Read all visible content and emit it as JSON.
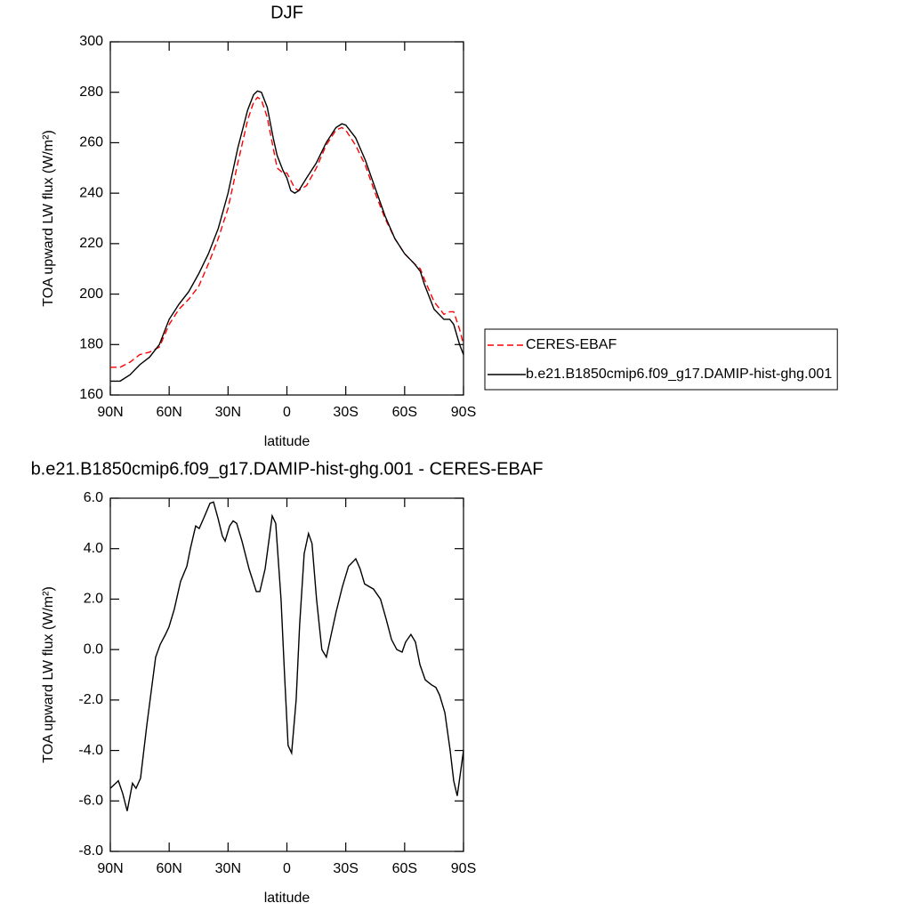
{
  "chart_data": [
    {
      "type": "line",
      "title": "DJF",
      "xlabel": "latitude",
      "ylabel": "TOA upward LW flux (W/m²)",
      "x": [
        90,
        85,
        80,
        75,
        70,
        65,
        60,
        55,
        50,
        45,
        40,
        35,
        30,
        25,
        20,
        17,
        15,
        13,
        10,
        7,
        5,
        2,
        0,
        -2,
        -4,
        -6,
        -10,
        -15,
        -20,
        -25,
        -28,
        -30,
        -35,
        -40,
        -45,
        -50,
        -55,
        -60,
        -65,
        -68,
        -70,
        -75,
        -80,
        -83,
        -85,
        -88,
        -90
      ],
      "series": [
        {
          "name": "CERES-EBAF",
          "color": "#ff0000",
          "line_style": "dashed",
          "values": [
            171,
            171,
            173,
            176,
            177,
            179,
            188,
            194,
            198,
            203,
            212,
            222,
            234,
            252,
            269,
            276,
            278,
            277,
            270,
            258,
            250,
            248,
            248,
            245,
            242,
            241,
            243,
            250,
            259,
            265,
            266,
            265,
            259,
            251,
            240,
            230,
            222,
            216,
            212,
            210,
            206,
            197,
            192,
            193,
            193,
            186,
            180
          ]
        },
        {
          "name": "b.e21.B1850cmip6.f09_g17.DAMIP-hist-ghg.001",
          "color": "#000000",
          "line_style": "solid",
          "values": [
            165.5,
            165.5,
            168,
            172,
            175,
            180,
            190,
            196,
            201,
            208,
            216,
            226,
            240,
            258,
            273,
            279,
            280.5,
            280,
            274,
            262,
            255,
            249,
            246,
            241,
            240,
            241,
            246,
            252,
            260,
            266,
            267.5,
            267,
            262,
            253,
            242,
            231,
            222,
            216,
            212,
            209,
            204,
            194,
            190,
            190,
            188,
            180,
            176
          ]
        }
      ],
      "xlim": [
        90,
        -90
      ],
      "xticks": [
        {
          "value": 90,
          "label": "90N"
        },
        {
          "value": 60,
          "label": "60N"
        },
        {
          "value": 30,
          "label": "30N"
        },
        0,
        {
          "value": -30,
          "label": "30S"
        },
        {
          "value": -60,
          "label": "60S"
        },
        {
          "value": -90,
          "label": "90S"
        }
      ],
      "ylim": [
        160,
        300
      ],
      "yticks": [
        160,
        180,
        200,
        220,
        240,
        260,
        280,
        300
      ],
      "grid": false,
      "legend": "right"
    },
    {
      "type": "line",
      "title": "b.e21.B1850cmip6.f09_g17.DAMIP-hist-ghg.001 - CERES-EBAF",
      "xlabel": "latitude",
      "ylabel": "TOA upward LW flux (W/m²)",
      "x": [
        90,
        85.9,
        83.7,
        81.4,
        78.7,
        76.9,
        74.6,
        71.4,
        66.9,
        64.6,
        61.9,
        60.1,
        57.4,
        54.2,
        51.0,
        49.2,
        46.5,
        44.7,
        41.9,
        39.2,
        37.4,
        35.1,
        32.9,
        31.5,
        29.2,
        27.4,
        25.6,
        22.9,
        19.3,
        15.6,
        13.8,
        11.1,
        7.5,
        5.7,
        3.0,
        1.2,
        -0.6,
        -2.4,
        -4.7,
        -6.5,
        -8.8,
        -11.0,
        -12.8,
        -15.1,
        -17.8,
        -20.1,
        -22.3,
        -25.1,
        -28.3,
        -31.4,
        -35.1,
        -37.3,
        -39.6,
        -44.1,
        -47.7,
        -50.6,
        -53.3,
        -56.0,
        -58.7,
        -60.5,
        -63.2,
        -65.5,
        -67.8,
        -70.5,
        -73.7,
        -75.9,
        -77.8,
        -80.5,
        -83.2,
        -85.0,
        -86.8,
        -88.6,
        -90
      ],
      "series": [
        {
          "name": null,
          "color": "#000000",
          "line_style": "solid",
          "values": [
            -5.5,
            -5.2,
            -5.7,
            -6.4,
            -5.3,
            -5.5,
            -5.1,
            -3,
            -0.3,
            0.2,
            0.6,
            0.9,
            1.6,
            2.7,
            3.3,
            4,
            4.9,
            4.8,
            5.3,
            5.8,
            5.85,
            5.2,
            4.5,
            4.3,
            4.9,
            5.1,
            5.0,
            4.3,
            3.2,
            2.3,
            2.3,
            3.2,
            5.3,
            5.0,
            2,
            -1,
            -3.8,
            -4.1,
            -2,
            1,
            3.8,
            4.6,
            4.2,
            2,
            0,
            -0.3,
            0.5,
            1.5,
            2.5,
            3.3,
            3.6,
            3.2,
            2.6,
            2.4,
            2,
            1.2,
            0.4,
            0,
            -0.1,
            0.3,
            0.6,
            0.3,
            -0.6,
            -1.2,
            -1.4,
            -1.5,
            -1.8,
            -2.5,
            -4,
            -5.2,
            -5.8,
            -4.8,
            -4.0
          ]
        }
      ],
      "xlim": [
        90,
        -90
      ],
      "xticks": [
        {
          "value": 90,
          "label": "90N"
        },
        {
          "value": 60,
          "label": "60N"
        },
        {
          "value": 30,
          "label": "30N"
        },
        0,
        {
          "value": -30,
          "label": "30S"
        },
        {
          "value": -60,
          "label": "60S"
        },
        {
          "value": -90,
          "label": "90S"
        }
      ],
      "ylim": [
        -8,
        6
      ],
      "yticks": [
        {
          "value": -8,
          "label": "-8.0"
        },
        {
          "value": -6,
          "label": "-6.0"
        },
        {
          "value": -4,
          "label": "-4.0"
        },
        {
          "value": -2,
          "label": "-2.0"
        },
        {
          "value": 0,
          "label": "0.0"
        },
        {
          "value": 2,
          "label": "2.0"
        },
        {
          "value": 4,
          "label": "4.0"
        },
        {
          "value": 6,
          "label": "6.0"
        }
      ],
      "grid": false
    }
  ]
}
